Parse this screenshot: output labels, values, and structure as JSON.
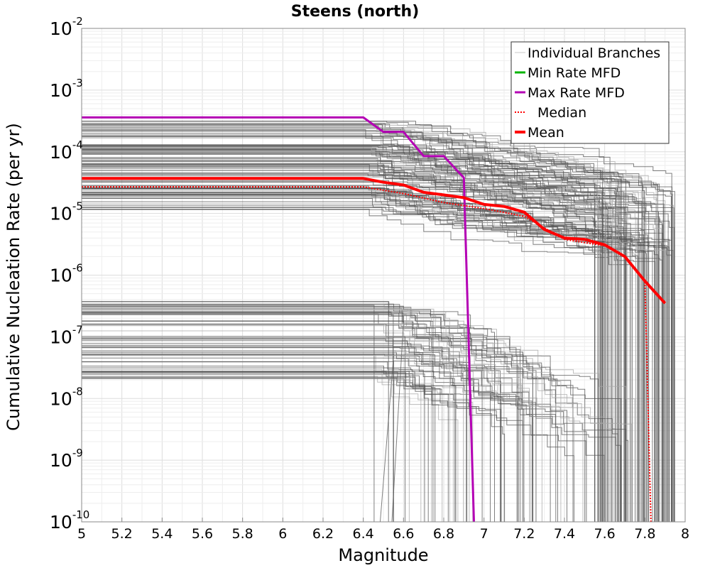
{
  "chart_data": {
    "type": "line",
    "title": "Steens (north)",
    "xlabel": "Magnitude",
    "ylabel": "Cumulative Nucleation Rate (per yr)",
    "xlim": [
      5,
      8
    ],
    "ylim": [
      1e-10,
      0.01
    ],
    "y_scale": "log",
    "grid": true,
    "legend_placement": "top-right",
    "x_ticks": [
      "5",
      "5.2",
      "5.4",
      "5.6",
      "5.8",
      "6",
      "6.2",
      "6.4",
      "6.6",
      "6.8",
      "7",
      "7.2",
      "7.4",
      "7.6",
      "7.8",
      "8"
    ],
    "y_ticks": [
      {
        "base": "10",
        "exp": "-2"
      },
      {
        "base": "10",
        "exp": "-3"
      },
      {
        "base": "10",
        "exp": "-4"
      },
      {
        "base": "10",
        "exp": "-5"
      },
      {
        "base": "10",
        "exp": "-6"
      },
      {
        "base": "10",
        "exp": "-7"
      },
      {
        "base": "10",
        "exp": "-8"
      },
      {
        "base": "10",
        "exp": "-9"
      },
      {
        "base": "10",
        "exp": "-10"
      }
    ],
    "legend": [
      {
        "label": "Individual Branches",
        "color": "#c8c8c8",
        "style": "solid"
      },
      {
        "label": "Min Rate MFD",
        "color": "#00b400",
        "style": "solid"
      },
      {
        "label": "Max Rate MFD",
        "color": "#b400b4",
        "style": "solid"
      },
      {
        "label": "Median",
        "color": "#ff0000",
        "style": "dotted"
      },
      {
        "label": "Mean",
        "color": "#ff0000",
        "style": "solid"
      }
    ],
    "series": [
      {
        "name": "Max Rate MFD",
        "color": "#b400b4",
        "x": [
          5.0,
          6.4,
          6.5,
          6.6,
          6.7,
          6.8,
          6.9,
          6.95
        ],
        "y": [
          0.00036,
          0.00036,
          0.00021,
          0.00021,
          8.5e-05,
          8.5e-05,
          3.8e-05,
          1e-10
        ]
      },
      {
        "name": "Median",
        "color": "#ff0000",
        "x": [
          5.0,
          6.4,
          6.6,
          6.8,
          7.0,
          7.2,
          7.4,
          7.6,
          7.7,
          7.8,
          7.83
        ],
        "y": [
          2.7e-05,
          2.7e-05,
          2.1e-05,
          1.5e-05,
          1.2e-05,
          9e-06,
          3.8e-06,
          3e-06,
          2e-06,
          8e-07,
          1e-10
        ]
      },
      {
        "name": "Mean",
        "color": "#ff0000",
        "x": [
          5.0,
          6.4,
          6.5,
          6.6,
          6.7,
          6.8,
          6.9,
          7.0,
          7.1,
          7.2,
          7.3,
          7.4,
          7.5,
          7.6,
          7.7,
          7.8,
          7.9
        ],
        "y": [
          3.7e-05,
          3.7e-05,
          3.2e-05,
          2.9e-05,
          2.2e-05,
          2e-05,
          1.8e-05,
          1.4e-05,
          1.3e-05,
          1.05e-05,
          5.5e-06,
          4e-06,
          3.8e-06,
          3.1e-06,
          2e-06,
          8e-07,
          3.5e-07
        ]
      }
    ]
  }
}
